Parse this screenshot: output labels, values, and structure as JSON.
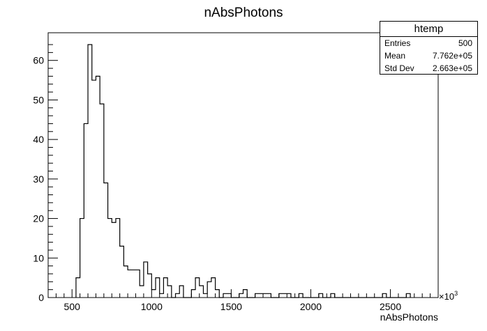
{
  "chart_data": {
    "type": "histogram",
    "title": "nAbsPhotons",
    "xlabel": "nAbsPhotons",
    "x_multiplier": "×10",
    "x_multiplier_exp": "3",
    "xlim": [
      350,
      2800
    ],
    "ylim": [
      0,
      67
    ],
    "bin_width": 25,
    "xticks": [
      500,
      1000,
      1500,
      2000,
      2500
    ],
    "yticks": [
      0,
      10,
      20,
      30,
      40,
      50,
      60
    ],
    "bins": [
      {
        "x0": 525,
        "count": 5
      },
      {
        "x0": 550,
        "count": 20
      },
      {
        "x0": 575,
        "count": 44
      },
      {
        "x0": 600,
        "count": 64
      },
      {
        "x0": 625,
        "count": 55
      },
      {
        "x0": 650,
        "count": 56
      },
      {
        "x0": 675,
        "count": 49
      },
      {
        "x0": 700,
        "count": 29
      },
      {
        "x0": 725,
        "count": 20
      },
      {
        "x0": 750,
        "count": 19
      },
      {
        "x0": 775,
        "count": 20
      },
      {
        "x0": 800,
        "count": 13
      },
      {
        "x0": 825,
        "count": 8
      },
      {
        "x0": 850,
        "count": 7
      },
      {
        "x0": 875,
        "count": 7
      },
      {
        "x0": 900,
        "count": 7
      },
      {
        "x0": 925,
        "count": 3
      },
      {
        "x0": 950,
        "count": 9
      },
      {
        "x0": 975,
        "count": 6
      },
      {
        "x0": 1000,
        "count": 2
      },
      {
        "x0": 1025,
        "count": 5
      },
      {
        "x0": 1050,
        "count": 1
      },
      {
        "x0": 1075,
        "count": 5
      },
      {
        "x0": 1100,
        "count": 3
      },
      {
        "x0": 1125,
        "count": 0
      },
      {
        "x0": 1150,
        "count": 1
      },
      {
        "x0": 1175,
        "count": 3
      },
      {
        "x0": 1200,
        "count": 0
      },
      {
        "x0": 1225,
        "count": 0
      },
      {
        "x0": 1250,
        "count": 2
      },
      {
        "x0": 1275,
        "count": 5
      },
      {
        "x0": 1300,
        "count": 3
      },
      {
        "x0": 1325,
        "count": 1
      },
      {
        "x0": 1350,
        "count": 4
      },
      {
        "x0": 1375,
        "count": 5
      },
      {
        "x0": 1400,
        "count": 2
      },
      {
        "x0": 1425,
        "count": 0
      },
      {
        "x0": 1450,
        "count": 1
      },
      {
        "x0": 1475,
        "count": 1
      },
      {
        "x0": 1500,
        "count": 0
      },
      {
        "x0": 1525,
        "count": 0
      },
      {
        "x0": 1550,
        "count": 1
      },
      {
        "x0": 1575,
        "count": 2
      },
      {
        "x0": 1600,
        "count": 0
      },
      {
        "x0": 1625,
        "count": 0
      },
      {
        "x0": 1650,
        "count": 1
      },
      {
        "x0": 1675,
        "count": 1
      },
      {
        "x0": 1700,
        "count": 1
      },
      {
        "x0": 1725,
        "count": 1
      },
      {
        "x0": 1750,
        "count": 0
      },
      {
        "x0": 1775,
        "count": 0
      },
      {
        "x0": 1800,
        "count": 1
      },
      {
        "x0": 1825,
        "count": 1
      },
      {
        "x0": 1850,
        "count": 1
      },
      {
        "x0": 1875,
        "count": 0
      },
      {
        "x0": 1900,
        "count": 0
      },
      {
        "x0": 1925,
        "count": 1
      },
      {
        "x0": 1950,
        "count": 0
      },
      {
        "x0": 1975,
        "count": 0
      },
      {
        "x0": 2000,
        "count": 0
      },
      {
        "x0": 2025,
        "count": 0
      },
      {
        "x0": 2050,
        "count": 1
      },
      {
        "x0": 2075,
        "count": 0
      },
      {
        "x0": 2100,
        "count": 0
      },
      {
        "x0": 2125,
        "count": 1
      },
      {
        "x0": 2150,
        "count": 0
      },
      {
        "x0": 2175,
        "count": 0
      },
      {
        "x0": 2200,
        "count": 0
      },
      {
        "x0": 2225,
        "count": 0
      },
      {
        "x0": 2250,
        "count": 0
      },
      {
        "x0": 2275,
        "count": 0
      },
      {
        "x0": 2300,
        "count": 0
      },
      {
        "x0": 2325,
        "count": 0
      },
      {
        "x0": 2350,
        "count": 0
      },
      {
        "x0": 2375,
        "count": 0
      },
      {
        "x0": 2400,
        "count": 0
      },
      {
        "x0": 2425,
        "count": 0
      },
      {
        "x0": 2450,
        "count": 1
      },
      {
        "x0": 2475,
        "count": 0
      },
      {
        "x0": 2500,
        "count": 0
      },
      {
        "x0": 2525,
        "count": 0
      },
      {
        "x0": 2550,
        "count": 0
      },
      {
        "x0": 2575,
        "count": 0
      },
      {
        "x0": 2600,
        "count": 1
      }
    ],
    "stats": {
      "name": "htemp",
      "rows": [
        {
          "label": "Entries",
          "value": "500"
        },
        {
          "label": "Mean",
          "value": "7.762e+05"
        },
        {
          "label": "Std Dev",
          "value": "2.663e+05"
        }
      ]
    }
  }
}
